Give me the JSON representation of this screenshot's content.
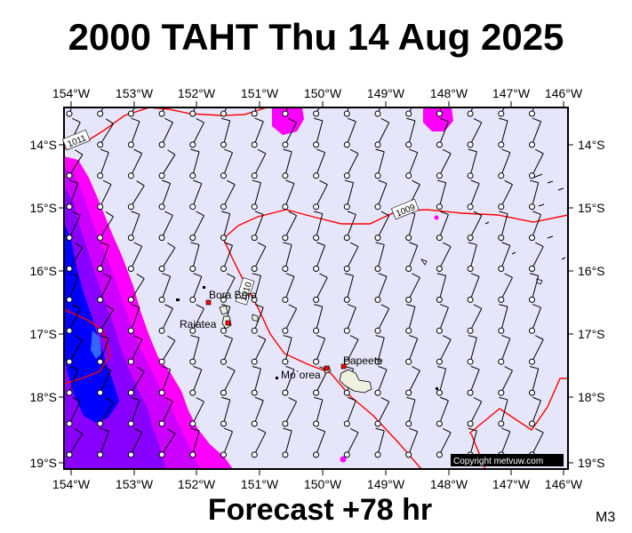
{
  "header": {
    "title": "2000 TAHT Thu 14 Aug 2025"
  },
  "footer": {
    "forecast": "Forecast +78 hr",
    "model": "M3"
  },
  "map": {
    "lon_labels": [
      "154°W",
      "153°W",
      "152°W",
      "151°W",
      "150°W",
      "149°W",
      "148°W",
      "147°W",
      "146°W"
    ],
    "lat_labels": [
      "14°S",
      "15°S",
      "16°S",
      "17°S",
      "18°S",
      "19°S"
    ],
    "lon_range": [
      -154,
      -146
    ],
    "lat_range": [
      -19.1,
      -13.4
    ],
    "background_color": "#e6e6fa",
    "precip_colors": [
      "#ff00ff",
      "#cc00ff",
      "#8800ff",
      "#0000ff",
      "#3366ff"
    ],
    "isobar_color": "#ff0000",
    "isobar_labels": [
      "1011",
      "1009",
      "1010"
    ],
    "places": [
      {
        "name": "Bora Bora",
        "lon": -151.75,
        "lat": -16.5
      },
      {
        "name": "Raiatea",
        "lon": -151.45,
        "lat": -16.83
      },
      {
        "name": "Mo`orea",
        "lon": -149.83,
        "lat": -17.53
      },
      {
        "name": "Papeete",
        "lon": -149.57,
        "lat": -17.53
      }
    ],
    "copyright": "Copyright metvuw.com"
  }
}
